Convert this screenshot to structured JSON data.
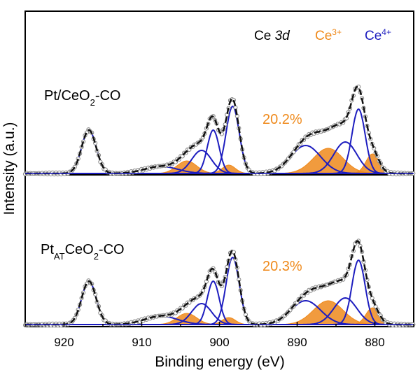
{
  "chart_data": {
    "type": "line",
    "title": "",
    "xlabel": "Binding energy (eV)",
    "ylabel": "Intensity (a.u.)",
    "xlim": [
      925,
      875
    ],
    "x_reversed": true,
    "xticks": [
      920,
      910,
      900,
      890,
      880
    ],
    "legend": {
      "position": "top-right",
      "entries": [
        {
          "text": "Ce ",
          "italic_text": "3d",
          "color": "#000000"
        },
        {
          "text": "Ce",
          "sup": "3+",
          "color": "#ef8a1c"
        },
        {
          "text": "Ce",
          "sup": "4+",
          "color": "#1d1dbf"
        }
      ]
    },
    "colors": {
      "raw": "#888888",
      "envelope": "#111111",
      "ce3": "#ef8a1c",
      "ce4": "#1d1dbf"
    },
    "panels": [
      {
        "label": {
          "prefix": "Pt/CeO",
          "sub": "2",
          "suffix": "-CO"
        },
        "ce3_fraction_label": "20.2%",
        "ce3_fraction": 20.2,
        "components": [
          {
            "state": "Ce4+",
            "center": 916.8,
            "fwhm": 2.2,
            "height": 62
          },
          {
            "state": "Ce4+",
            "center": 907.5,
            "fwhm": 5.0,
            "height": 10
          },
          {
            "state": "Ce3+",
            "center": 904.2,
            "fwhm": 3.0,
            "height": 18
          },
          {
            "state": "Ce4+",
            "center": 902.3,
            "fwhm": 3.0,
            "height": 33
          },
          {
            "state": "Ce4+",
            "center": 900.8,
            "fwhm": 1.8,
            "height": 62
          },
          {
            "state": "Ce3+",
            "center": 898.8,
            "fwhm": 2.0,
            "height": 12
          },
          {
            "state": "Ce4+",
            "center": 898.3,
            "fwhm": 2.0,
            "height": 96
          },
          {
            "state": "Ce4+",
            "center": 888.9,
            "fwhm": 4.5,
            "height": 40
          },
          {
            "state": "Ce3+",
            "center": 886.0,
            "fwhm": 4.5,
            "height": 36
          },
          {
            "state": "Ce4+",
            "center": 883.8,
            "fwhm": 3.5,
            "height": 45
          },
          {
            "state": "Ce4+",
            "center": 882.1,
            "fwhm": 2.0,
            "height": 92
          },
          {
            "state": "Ce3+",
            "center": 880.3,
            "fwhm": 2.0,
            "height": 28
          }
        ]
      },
      {
        "label": {
          "prefix": "Pt",
          "sub": "AT",
          "suffix": "CeO",
          "sub2": "2",
          "suffix2": "-CO"
        },
        "ce3_fraction_label": "20.3%",
        "ce3_fraction": 20.3,
        "components": [
          {
            "state": "Ce4+",
            "center": 916.8,
            "fwhm": 2.2,
            "height": 62
          },
          {
            "state": "Ce4+",
            "center": 907.5,
            "fwhm": 5.0,
            "height": 12
          },
          {
            "state": "Ce3+",
            "center": 904.2,
            "fwhm": 3.0,
            "height": 16
          },
          {
            "state": "Ce4+",
            "center": 902.3,
            "fwhm": 3.0,
            "height": 30
          },
          {
            "state": "Ce4+",
            "center": 900.8,
            "fwhm": 1.8,
            "height": 62
          },
          {
            "state": "Ce3+",
            "center": 898.8,
            "fwhm": 2.0,
            "height": 10
          },
          {
            "state": "Ce4+",
            "center": 898.3,
            "fwhm": 2.0,
            "height": 96
          },
          {
            "state": "Ce4+",
            "center": 888.9,
            "fwhm": 4.5,
            "height": 34
          },
          {
            "state": "Ce3+",
            "center": 886.0,
            "fwhm": 4.5,
            "height": 34
          },
          {
            "state": "Ce4+",
            "center": 883.8,
            "fwhm": 3.5,
            "height": 38
          },
          {
            "state": "Ce4+",
            "center": 882.1,
            "fwhm": 2.0,
            "height": 92
          },
          {
            "state": "Ce3+",
            "center": 880.3,
            "fwhm": 2.0,
            "height": 24
          }
        ]
      }
    ]
  }
}
